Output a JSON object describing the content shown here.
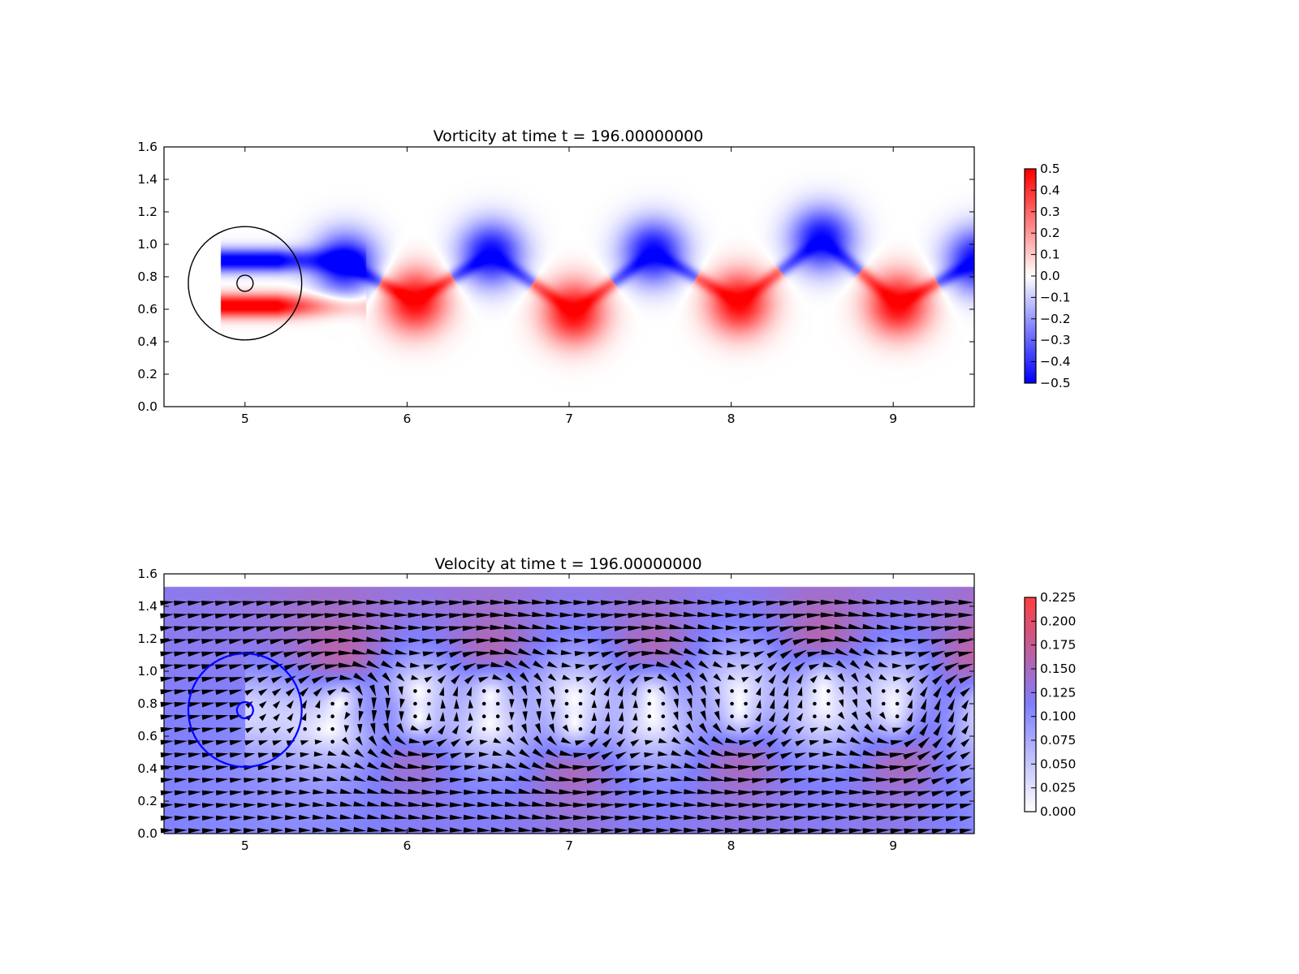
{
  "chart_data": [
    {
      "type": "heatmap",
      "title": "Vorticity at time t =   196.00000000",
      "xlabel": "",
      "ylabel": "",
      "xlim": [
        4.5,
        9.5
      ],
      "ylim": [
        0.0,
        1.6
      ],
      "x_ticks": [
        "5",
        "6",
        "7",
        "8",
        "9"
      ],
      "y_ticks": [
        "0.0",
        "0.2",
        "0.4",
        "0.6",
        "0.8",
        "1.0",
        "1.2",
        "1.4",
        "1.6"
      ],
      "colormap": {
        "low": "#0000ff",
        "mid": "#ffffff",
        "high": "#ff0000"
      },
      "colorbar": {
        "range": [
          -0.5,
          0.5
        ],
        "ticks": [
          "−0.5",
          "−0.4",
          "−0.3",
          "−0.2",
          "−0.1",
          "0.0",
          "0.1",
          "0.2",
          "0.3",
          "0.4",
          "0.5"
        ]
      },
      "cylinder": {
        "center": [
          5.0,
          0.76
        ],
        "radius": 0.05,
        "color": "#000000"
      },
      "ring": {
        "center": [
          5.0,
          0.76
        ],
        "radius": 0.35,
        "color": "#000000"
      },
      "vortices": [
        {
          "x": 5.62,
          "y": 0.88,
          "strength": -0.5
        },
        {
          "x": 6.52,
          "y": 0.94,
          "strength": -0.5
        },
        {
          "x": 7.52,
          "y": 0.95,
          "strength": -0.5
        },
        {
          "x": 8.56,
          "y": 1.03,
          "strength": -0.5
        },
        {
          "x": 9.52,
          "y": 0.9,
          "strength": -0.5
        },
        {
          "x": 6.05,
          "y": 0.65,
          "strength": 0.5
        },
        {
          "x": 7.03,
          "y": 0.58,
          "strength": 0.5
        },
        {
          "x": 8.05,
          "y": 0.64,
          "strength": 0.5
        },
        {
          "x": 9.03,
          "y": 0.63,
          "strength": 0.5
        }
      ]
    },
    {
      "type": "heatmap",
      "title": "Velocity at time t =   196.00000000",
      "xlabel": "",
      "ylabel": "",
      "xlim": [
        4.5,
        9.5
      ],
      "ylim": [
        0.0,
        1.6
      ],
      "data_extent_y": [
        0.0,
        1.52
      ],
      "x_ticks": [
        "5",
        "6",
        "7",
        "8",
        "9"
      ],
      "y_ticks": [
        "0.0",
        "0.2",
        "0.4",
        "0.6",
        "0.8",
        "1.0",
        "1.2",
        "1.4",
        "1.6"
      ],
      "colormap": {
        "low": "#ffffff",
        "mid": "#8080ff",
        "high": "#ff4040"
      },
      "colorbar": {
        "range": [
          0.0,
          0.225
        ],
        "ticks": [
          "0.000",
          "0.025",
          "0.050",
          "0.075",
          "0.100",
          "0.125",
          "0.150",
          "0.175",
          "0.200",
          "0.225"
        ]
      },
      "quiver": {
        "color": "#000000",
        "dx": 0.085,
        "dy": 0.078
      },
      "cylinder": {
        "center": [
          5.0,
          0.76
        ],
        "radius": 0.05,
        "color": "#0000ff"
      },
      "ring": {
        "center": [
          5.0,
          0.76
        ],
        "radius": 0.35,
        "color": "#0000ff"
      }
    }
  ]
}
